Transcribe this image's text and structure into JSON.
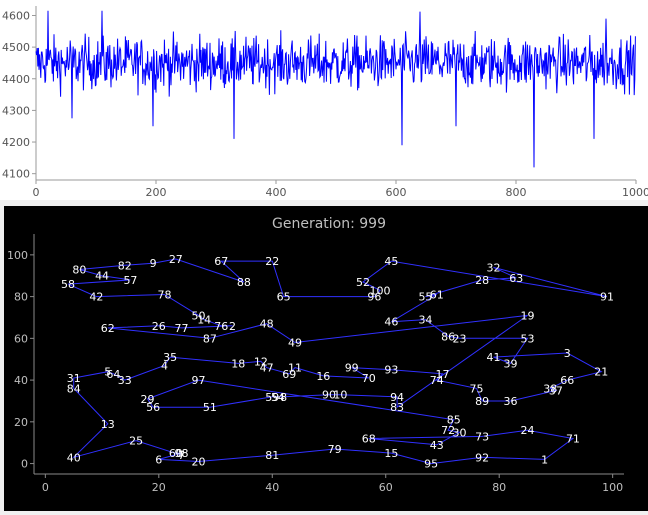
{
  "chart_data": [
    {
      "type": "line",
      "title": "",
      "xlabel": "",
      "ylabel": "",
      "x_range": [
        0,
        1000
      ],
      "ylim": [
        4080,
        4630
      ],
      "xticks": [
        0,
        200,
        400,
        600,
        800,
        1000
      ],
      "yticks": [
        4100,
        4200,
        4300,
        4400,
        4500,
        4600
      ],
      "grid": false,
      "color": "#0000ff",
      "series_summary": {
        "count": 1000,
        "min": 4120,
        "max": 4615,
        "typical_low": 4340,
        "typical_high": 4560
      }
    },
    {
      "type": "scatter",
      "title": "Generation: 999",
      "xlabel": "",
      "ylabel": "",
      "xlim": [
        -2,
        102
      ],
      "ylim": [
        -5,
        110
      ],
      "xticks": [
        0,
        20,
        40,
        60,
        80,
        100
      ],
      "yticks": [
        0,
        20,
        40,
        60,
        80,
        100
      ],
      "grid": false,
      "background": "#000000",
      "line_color": "#3030ff",
      "label_color": "#ffffff",
      "points": [
        {
          "id": "1",
          "x": 88,
          "y": 2
        },
        {
          "id": "3",
          "x": 92,
          "y": 53
        },
        {
          "id": "4",
          "x": 21,
          "y": 47
        },
        {
          "id": "6",
          "x": 20,
          "y": 2
        },
        {
          "id": "9",
          "x": 19,
          "y": 96
        },
        {
          "id": "11",
          "x": 44,
          "y": 46
        },
        {
          "id": "12",
          "x": 38,
          "y": 49
        },
        {
          "id": "13",
          "x": 11,
          "y": 19
        },
        {
          "id": "14",
          "x": 28,
          "y": 69
        },
        {
          "id": "15",
          "x": 61,
          "y": 5
        },
        {
          "id": "16",
          "x": 49,
          "y": 42
        },
        {
          "id": "17",
          "x": 70,
          "y": 43
        },
        {
          "id": "18",
          "x": 34,
          "y": 48
        },
        {
          "id": "19",
          "x": 85,
          "y": 71
        },
        {
          "id": "20",
          "x": 27,
          "y": 1
        },
        {
          "id": "21",
          "x": 98,
          "y": 44
        },
        {
          "id": "22",
          "x": 40,
          "y": 97
        },
        {
          "id": "23",
          "x": 73,
          "y": 60
        },
        {
          "id": "24",
          "x": 85,
          "y": 16
        },
        {
          "id": "25",
          "x": 16,
          "y": 11
        },
        {
          "id": "26",
          "x": 20,
          "y": 66
        },
        {
          "id": "27",
          "x": 23,
          "y": 98
        },
        {
          "id": "28",
          "x": 77,
          "y": 88
        },
        {
          "id": "29",
          "x": 18,
          "y": 31
        },
        {
          "id": "30",
          "x": 73,
          "y": 15
        },
        {
          "id": "31",
          "x": 5,
          "y": 41
        },
        {
          "id": "32",
          "x": 79,
          "y": 94
        },
        {
          "id": "33",
          "x": 14,
          "y": 40
        },
        {
          "id": "34",
          "x": 67,
          "y": 69
        },
        {
          "id": "35",
          "x": 22,
          "y": 51
        },
        {
          "id": "36",
          "x": 82,
          "y": 30
        },
        {
          "id": "37",
          "x": 90,
          "y": 35
        },
        {
          "id": "38",
          "x": 89,
          "y": 36
        },
        {
          "id": "39",
          "x": 82,
          "y": 48
        },
        {
          "id": "40",
          "x": 5,
          "y": 3
        },
        {
          "id": "41",
          "x": 79,
          "y": 51
        },
        {
          "id": "42",
          "x": 9,
          "y": 80
        },
        {
          "id": "43",
          "x": 69,
          "y": 9
        },
        {
          "id": "44",
          "x": 10,
          "y": 90
        },
        {
          "id": "45",
          "x": 61,
          "y": 97
        },
        {
          "id": "46",
          "x": 61,
          "y": 68
        },
        {
          "id": "47",
          "x": 39,
          "y": 46
        },
        {
          "id": "48",
          "x": 39,
          "y": 67
        },
        {
          "id": "49",
          "x": 44,
          "y": 58
        },
        {
          "id": "50",
          "x": 27,
          "y": 71
        },
        {
          "id": "51",
          "x": 29,
          "y": 27
        },
        {
          "id": "52",
          "x": 56,
          "y": 87
        },
        {
          "id": "53",
          "x": 85,
          "y": 60
        },
        {
          "id": "54",
          "x": 41,
          "y": 32
        },
        {
          "id": "55",
          "x": 67,
          "y": 80
        },
        {
          "id": "56",
          "x": 19,
          "y": 27
        },
        {
          "id": "57",
          "x": 15,
          "y": 88
        },
        {
          "id": "58",
          "x": 4,
          "y": 86
        },
        {
          "id": "59",
          "x": 40,
          "y": 32
        },
        {
          "id": "60",
          "x": 23,
          "y": 5
        },
        {
          "id": "61",
          "x": 69,
          "y": 81
        },
        {
          "id": "62",
          "x": 11,
          "y": 65
        },
        {
          "id": "63",
          "x": 83,
          "y": 89
        },
        {
          "id": "65",
          "x": 42,
          "y": 80
        },
        {
          "id": "66",
          "x": 92,
          "y": 40
        },
        {
          "id": "67",
          "x": 31,
          "y": 97
        },
        {
          "id": "68",
          "x": 57,
          "y": 12
        },
        {
          "id": "69",
          "x": 43,
          "y": 43
        },
        {
          "id": "70",
          "x": 57,
          "y": 41
        },
        {
          "id": "71",
          "x": 93,
          "y": 12
        },
        {
          "id": "72",
          "x": 71,
          "y": 16
        },
        {
          "id": "73",
          "x": 77,
          "y": 13
        },
        {
          "id": "74",
          "x": 69,
          "y": 40
        },
        {
          "id": "75",
          "x": 76,
          "y": 36
        },
        {
          "id": "76",
          "x": 31,
          "y": 66
        },
        {
          "id": "77",
          "x": 24,
          "y": 65
        },
        {
          "id": "78",
          "x": 21,
          "y": 81
        },
        {
          "id": "79",
          "x": 51,
          "y": 7
        },
        {
          "id": "80",
          "x": 6,
          "y": 93
        },
        {
          "id": "81",
          "x": 40,
          "y": 4
        },
        {
          "id": "82",
          "x": 14,
          "y": 95
        },
        {
          "id": "83",
          "x": 62,
          "y": 27
        },
        {
          "id": "84",
          "x": 5,
          "y": 36
        },
        {
          "id": "85",
          "x": 72,
          "y": 21
        },
        {
          "id": "86",
          "x": 71,
          "y": 61
        },
        {
          "id": "87",
          "x": 29,
          "y": 60
        },
        {
          "id": "88",
          "x": 35,
          "y": 87
        },
        {
          "id": "89",
          "x": 77,
          "y": 30
        },
        {
          "id": "90",
          "x": 50,
          "y": 33
        },
        {
          "id": "91",
          "x": 99,
          "y": 80
        },
        {
          "id": "92",
          "x": 77,
          "y": 3
        },
        {
          "id": "93",
          "x": 61,
          "y": 45
        },
        {
          "id": "94",
          "x": 62,
          "y": 32
        },
        {
          "id": "95",
          "x": 68,
          "y": 0
        },
        {
          "id": "96",
          "x": 58,
          "y": 80
        },
        {
          "id": "97",
          "x": 27,
          "y": 40
        },
        {
          "id": "98",
          "x": 24,
          "y": 5
        },
        {
          "id": "99",
          "x": 54,
          "y": 46
        },
        {
          "id": "100",
          "x": 59,
          "y": 83
        },
        {
          "id": "2",
          "x": 33,
          "y": 66
        },
        {
          "id": "5",
          "x": 11,
          "y": 44
        },
        {
          "id": "7",
          "x": 24,
          "y": 4
        },
        {
          "id": "8",
          "x": 42,
          "y": 32
        },
        {
          "id": "10",
          "x": 52,
          "y": 33
        },
        {
          "id": "64",
          "x": 12,
          "y": 43
        }
      ],
      "tour": [
        "1",
        "92",
        "95",
        "15",
        "79",
        "81",
        "20",
        "6",
        "98",
        "60",
        "7",
        "25",
        "40",
        "13",
        "84",
        "31",
        "5",
        "64",
        "33",
        "4",
        "35",
        "18",
        "12",
        "47",
        "69",
        "11",
        "16",
        "70",
        "99",
        "93",
        "17",
        "74",
        "75",
        "89",
        "36",
        "37",
        "38",
        "66",
        "21",
        "3",
        "41",
        "39",
        "53",
        "23",
        "86",
        "34",
        "46",
        "61",
        "55",
        "28",
        "63",
        "32",
        "91",
        "45",
        "52",
        "100",
        "96",
        "65",
        "22",
        "67",
        "88",
        "27",
        "9",
        "82",
        "80",
        "44",
        "57",
        "58",
        "42",
        "78",
        "50",
        "14",
        "76",
        "2",
        "77",
        "26",
        "62",
        "87",
        "48",
        "49",
        "19",
        "83",
        "94",
        "10",
        "90",
        "8",
        "54",
        "59",
        "51",
        "56",
        "29",
        "97",
        "85",
        "72",
        "30",
        "43",
        "68",
        "73",
        "24",
        "71",
        "1"
      ]
    }
  ]
}
